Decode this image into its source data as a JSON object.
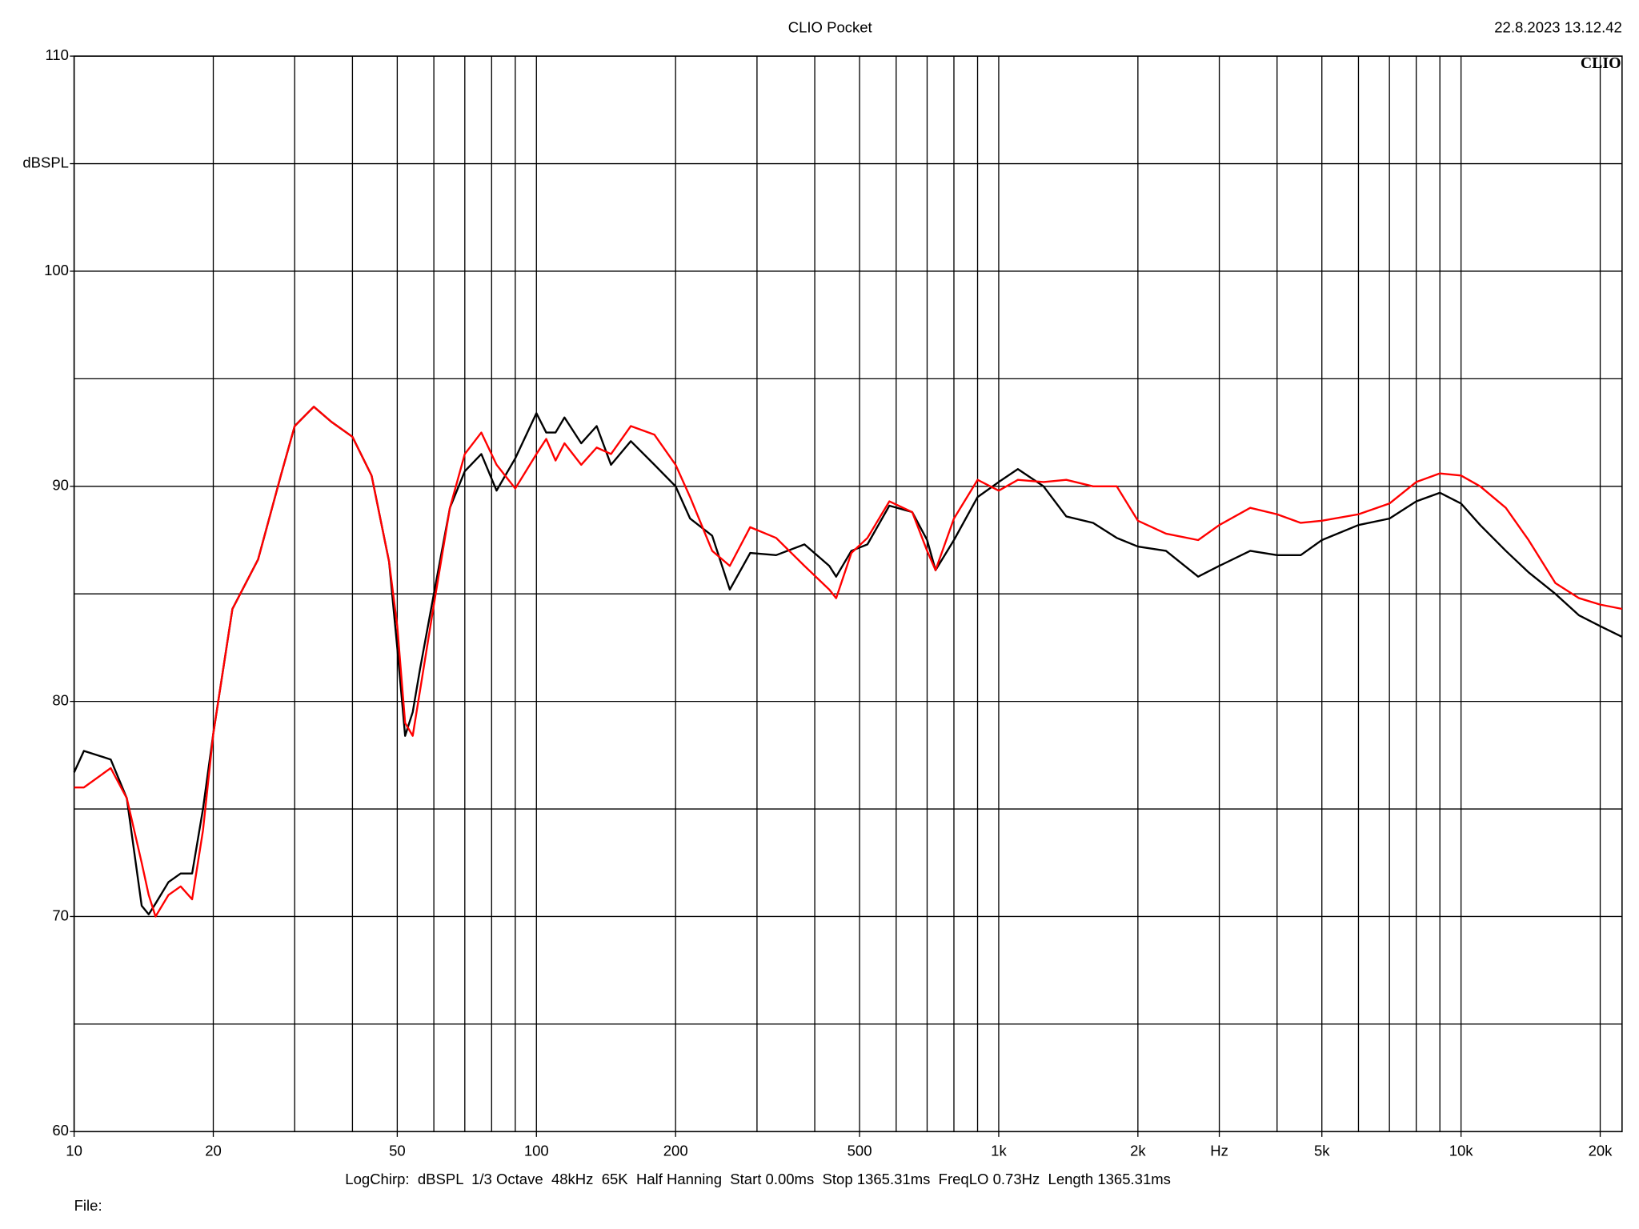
{
  "chart_data": {
    "type": "line",
    "title": "CLIO Pocket",
    "timestamp": "22.8.2023 13.12.42",
    "logo": "CLIO",
    "settings": "LogChirp:  dBSPL  1/3 Octave  48kHz  65K  Half Hanning  Start 0.00ms  Stop 1365.31ms  FreqLO 0.73Hz  Length 1365.31ms",
    "file_label": "File:",
    "xscale": "log",
    "xlim": [
      10,
      22300
    ],
    "ylim": [
      60,
      110
    ],
    "grid": true,
    "xticks": [
      10,
      20,
      50,
      100,
      200,
      500,
      {
        "value": 1000,
        "label": "1k"
      },
      {
        "value": 2000,
        "label": "2k"
      },
      {
        "value": 3000,
        "label": "Hz"
      },
      {
        "value": 5000,
        "label": "5k"
      },
      {
        "value": 10000,
        "label": "10k"
      },
      {
        "value": 20000,
        "label": "20k"
      }
    ],
    "minor_xticks": [
      30,
      40,
      60,
      70,
      80,
      90,
      300,
      400,
      600,
      700,
      800,
      900,
      4000,
      6000,
      7000,
      8000,
      9000
    ],
    "yticks": [
      60,
      70,
      80,
      90,
      100,
      {
        "value": 105,
        "label": "dBSPL"
      },
      110
    ],
    "minor_yticks": [
      65,
      75,
      85,
      95
    ],
    "x": [
      10,
      10.5,
      12,
      13,
      14,
      14.5,
      15,
      16,
      17,
      18,
      19,
      20,
      22,
      25,
      28,
      30,
      33,
      36,
      40,
      44,
      48,
      50,
      52,
      54,
      56,
      60,
      65,
      70,
      76,
      82,
      90,
      100,
      105,
      110,
      115,
      125,
      135,
      145,
      160,
      180,
      200,
      215,
      240,
      262,
      290,
      330,
      380,
      430,
      445,
      480,
      520,
      580,
      650,
      700,
      730,
      800,
      900,
      1000,
      1100,
      1250,
      1400,
      1600,
      1800,
      2000,
      2300,
      2700,
      3000,
      3500,
      4000,
      4500,
      5000,
      6000,
      7000,
      8000,
      9000,
      10000,
      11000,
      12500,
      14000,
      16000,
      18000,
      20000,
      22300
    ],
    "series": [
      {
        "color": "#000000",
        "values": [
          76.7,
          77.7,
          77.3,
          75.5,
          70.5,
          70.1,
          70.6,
          71.6,
          72.0,
          72.0,
          75.0,
          78.5,
          84.3,
          86.6,
          90.5,
          92.8,
          93.7,
          93.0,
          92.3,
          90.5,
          86.5,
          82.5,
          78.4,
          79.5,
          81.5,
          85.0,
          89.0,
          90.7,
          91.5,
          89.8,
          91.3,
          93.4,
          92.5,
          92.5,
          93.2,
          92.0,
          92.8,
          91.0,
          92.1,
          91.0,
          90.0,
          88.5,
          87.7,
          85.2,
          86.9,
          86.8,
          87.3,
          86.3,
          85.8,
          87.0,
          87.3,
          89.1,
          88.8,
          87.5,
          86.1,
          87.5,
          89.5,
          90.2,
          90.8,
          90.0,
          88.6,
          88.3,
          87.6,
          87.2,
          87.0,
          85.8,
          86.3,
          87.0,
          86.8,
          86.8,
          87.5,
          88.2,
          88.5,
          89.3,
          89.7,
          89.2,
          88.2,
          87.0,
          86.0,
          85.0,
          84.0,
          83.5,
          83.0
        ]
      },
      {
        "color": "#ff0000",
        "values": [
          76.0,
          76.0,
          76.9,
          75.5,
          72.5,
          71.0,
          70.0,
          71.0,
          71.4,
          70.8,
          74.0,
          78.5,
          84.3,
          86.6,
          90.5,
          92.8,
          93.7,
          93.0,
          92.3,
          90.5,
          86.5,
          83.5,
          79.0,
          78.4,
          80.5,
          84.5,
          89.0,
          91.5,
          92.5,
          91.0,
          89.9,
          91.5,
          92.2,
          91.2,
          92.0,
          91.0,
          91.8,
          91.5,
          92.8,
          92.4,
          91.0,
          89.5,
          87.0,
          86.3,
          88.1,
          87.6,
          86.3,
          85.2,
          84.8,
          86.9,
          87.6,
          89.3,
          88.8,
          87.0,
          86.1,
          88.5,
          90.3,
          89.8,
          90.3,
          90.2,
          90.3,
          90.0,
          90.0,
          88.4,
          87.8,
          87.5,
          88.2,
          89.0,
          88.7,
          88.3,
          88.4,
          88.7,
          89.2,
          90.2,
          90.6,
          90.5,
          90.0,
          89.0,
          87.5,
          85.5,
          84.8,
          84.5,
          84.3
        ]
      }
    ]
  }
}
